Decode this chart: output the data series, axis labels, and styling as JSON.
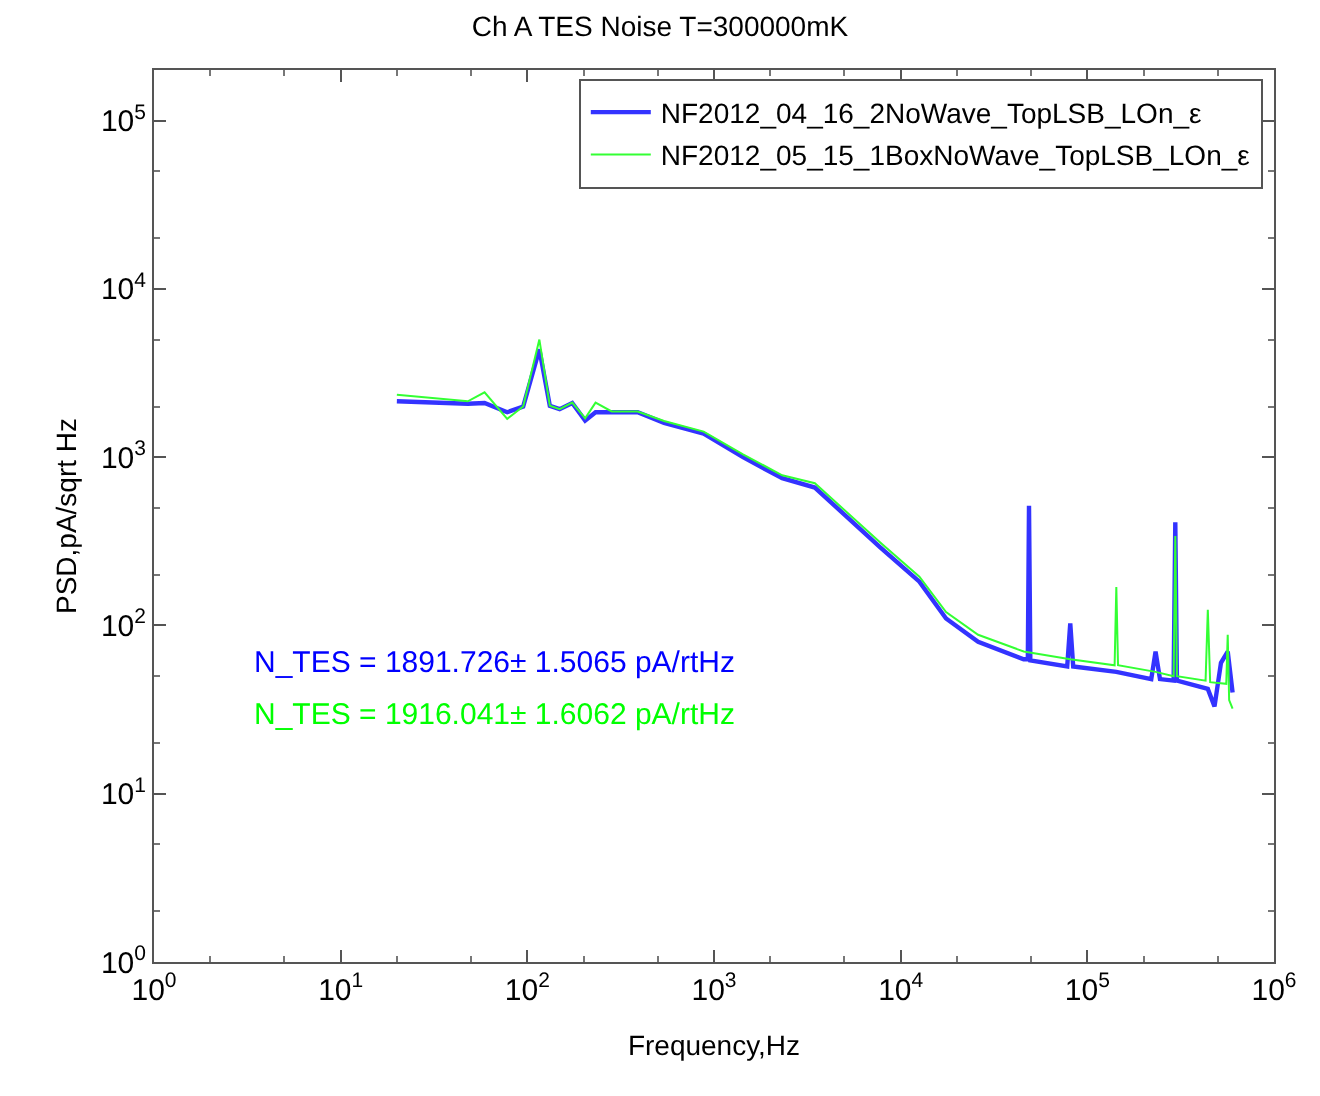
{
  "chart_data": {
    "type": "line",
    "title": "Ch A TES Noise T=300000mK",
    "xlabel": "Frequency,Hz",
    "ylabel": "PSD,pA/sqrt Hz",
    "log": "xy",
    "legend": "top right",
    "marker": "none",
    "line_style": "solid",
    "xlim": [
      1,
      1000000
    ],
    "ylim": [
      1,
      200000
    ],
    "xticks": [
      {
        "value": 1,
        "label": "10$^{0}$"
      },
      {
        "value": 10,
        "label": "10$^{1}$"
      },
      {
        "value": 100,
        "label": "10$^{2}$"
      },
      {
        "value": 1000,
        "label": "10$^{3}$"
      },
      {
        "value": 10000,
        "label": "10$^{4}$"
      },
      {
        "value": 100000,
        "label": "10$^{5}$"
      },
      {
        "value": 1000000,
        "label": "10$^{6}$"
      }
    ],
    "yticks": [
      {
        "value": 1,
        "label": "10$^{0}$"
      },
      {
        "value": 10,
        "label": "10$^{1}$"
      },
      {
        "value": 100,
        "label": "10$^{2}$"
      },
      {
        "value": 1000,
        "label": "10$^{3}$"
      },
      {
        "value": 10000,
        "label": "10$^{4}$"
      },
      {
        "value": 100000,
        "label": "10$^{5}$"
      }
    ],
    "series": [
      {
        "name": "NF2012_04_16_2NoWave_TopLSB_LOn_ε",
        "color": "#3333ff",
        "x": [
          20,
          48,
          59,
          78,
          95,
          116,
          132,
          149,
          174,
          204,
          232,
          283,
          390,
          540,
          880,
          1430,
          2320,
          3470,
          7800,
          12600,
          17500,
          26000,
          45600,
          48000,
          48700,
          49500,
          78000,
          81000,
          84000,
          143000,
          220000,
          232000,
          245000,
          290000,
          296000,
          302000,
          442000,
          480000,
          520000,
          565000,
          600000
        ],
        "values": [
          2150,
          2080,
          2100,
          1850,
          2000,
          4370,
          2020,
          1930,
          2100,
          1650,
          1850,
          1850,
          1850,
          1600,
          1380,
          1000,
          750,
          660,
          290,
          182,
          110,
          80,
          63,
          63,
          515,
          62,
          57,
          103,
          57,
          53,
          48,
          70,
          48,
          47,
          410,
          47,
          42,
          33,
          60,
          70,
          40
        ]
      },
      {
        "name": "NF2012_05_15_1BoxNoWave_TopLSB_LOn_ε",
        "color": "#33ff33",
        "x": [
          20,
          48,
          59,
          78,
          95,
          116,
          132,
          149,
          174,
          204,
          232,
          283,
          390,
          540,
          880,
          1430,
          2320,
          3470,
          7800,
          12600,
          17500,
          26000,
          45600,
          81000,
          140000,
          143000,
          146000,
          232000,
          290000,
          296000,
          302000,
          430000,
          442000,
          455000,
          555000,
          565000,
          575000,
          600000
        ],
        "values": [
          2350,
          2150,
          2430,
          1690,
          2000,
          5000,
          2020,
          1930,
          2110,
          1700,
          2110,
          1870,
          1870,
          1640,
          1420,
          1040,
          780,
          700,
          310,
          195,
          120,
          88,
          70,
          63,
          58,
          169,
          58,
          53,
          50,
          340,
          50,
          47,
          124,
          46,
          45,
          88,
          36,
          32
        ]
      }
    ],
    "annotations": [
      "N_TES = 1891.726± 1.5065 pA/rtHz",
      "N_TES = 1916.041± 1.6062 pA/rtHz"
    ]
  }
}
